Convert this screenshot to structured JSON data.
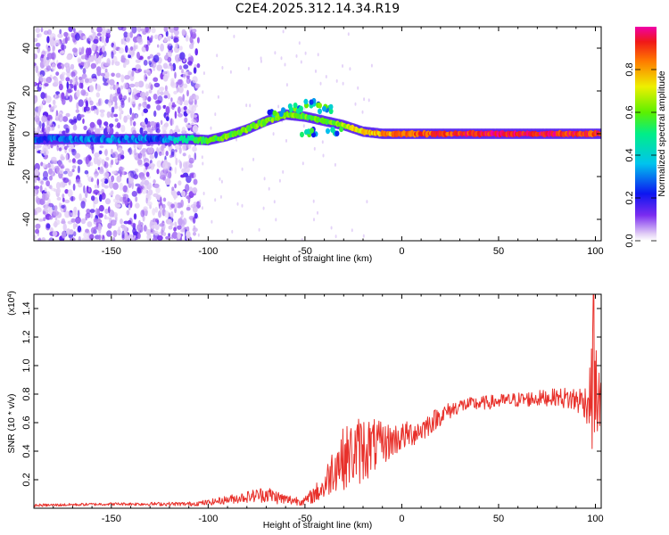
{
  "title": "C2E4.2025.312.14.34.R19",
  "colors": {
    "snr_line": "#e8302a",
    "axis": "#000000",
    "background": "#ffffff"
  },
  "chart_data": [
    {
      "type": "heatmap",
      "name": "spectrogram",
      "xlabel": "Height of straight line (km)",
      "ylabel": "Frequency (Hz)",
      "xlim": [
        -190,
        103
      ],
      "ylim": [
        -50,
        50
      ],
      "xticks": [
        -150,
        -100,
        -50,
        0,
        50,
        100
      ],
      "yticks": [
        -40,
        -20,
        0,
        20,
        40
      ],
      "colorbar": {
        "label": "Normalized spectral amplitude",
        "range": [
          0,
          1
        ],
        "ticks": [
          "0.0",
          "0.2",
          "0.4",
          "0.6",
          "0.8"
        ],
        "tick_values": [
          0.0,
          0.2,
          0.4,
          0.6,
          0.8
        ]
      },
      "noise_region_x": [
        -190,
        -105
      ],
      "ridge": [
        {
          "x": -190,
          "f": -2.5,
          "a": 0.25
        },
        {
          "x": -160,
          "f": -2.5,
          "a": 0.3
        },
        {
          "x": -125,
          "f": -2.5,
          "a": 0.28
        },
        {
          "x": -110,
          "f": -2.5,
          "a": 0.5
        },
        {
          "x": -100,
          "f": -3,
          "a": 0.55
        },
        {
          "x": -90,
          "f": -1,
          "a": 0.6
        },
        {
          "x": -80,
          "f": 2,
          "a": 0.6
        },
        {
          "x": -70,
          "f": 6,
          "a": 0.6
        },
        {
          "x": -60,
          "f": 9,
          "a": 0.62
        },
        {
          "x": -50,
          "f": 8,
          "a": 0.6
        },
        {
          "x": -40,
          "f": 6,
          "a": 0.6
        },
        {
          "x": -30,
          "f": 4,
          "a": 0.65
        },
        {
          "x": -20,
          "f": 1,
          "a": 0.75
        },
        {
          "x": -10,
          "f": 0,
          "a": 0.8
        },
        {
          "x": 0,
          "f": 0,
          "a": 0.85
        },
        {
          "x": 20,
          "f": 0,
          "a": 0.9
        },
        {
          "x": 60,
          "f": 0,
          "a": 0.95
        },
        {
          "x": 100,
          "f": 0,
          "a": 0.9
        }
      ],
      "branches": [
        {
          "x": -65,
          "f": 10
        },
        {
          "x": -55,
          "f": 12
        },
        {
          "x": -47,
          "f": 14
        },
        {
          "x": -40,
          "f": 12
        },
        {
          "x": -48,
          "f": 1
        },
        {
          "x": -35,
          "f": 1
        }
      ]
    },
    {
      "type": "line",
      "name": "snr",
      "xlabel": "Height of straight line (km)",
      "ylabel": "SNR (10 * v/v)",
      "scale_label": "(x10",
      "scale_exp": "4",
      "scale_close": ")",
      "xlim": [
        -190,
        103
      ],
      "ylim": [
        0,
        1.5
      ],
      "xticks": [
        -150,
        -100,
        -50,
        0,
        50,
        100
      ],
      "yticks": [
        "0.2",
        "0.4",
        "0.6",
        "0.8",
        "1.0",
        "1.2",
        "1.4"
      ],
      "ytick_values": [
        0.2,
        0.4,
        0.6,
        0.8,
        1.0,
        1.2,
        1.4
      ],
      "envelope": [
        {
          "x": -190,
          "y": 0.02,
          "n": 0.01
        },
        {
          "x": -150,
          "y": 0.03,
          "n": 0.01
        },
        {
          "x": -110,
          "y": 0.03,
          "n": 0.015
        },
        {
          "x": -100,
          "y": 0.04,
          "n": 0.02
        },
        {
          "x": -80,
          "y": 0.08,
          "n": 0.04
        },
        {
          "x": -70,
          "y": 0.1,
          "n": 0.06
        },
        {
          "x": -60,
          "y": 0.06,
          "n": 0.04
        },
        {
          "x": -50,
          "y": 0.05,
          "n": 0.03
        },
        {
          "x": -40,
          "y": 0.15,
          "n": 0.1
        },
        {
          "x": -35,
          "y": 0.3,
          "n": 0.18
        },
        {
          "x": -30,
          "y": 0.35,
          "n": 0.22
        },
        {
          "x": -20,
          "y": 0.42,
          "n": 0.25
        },
        {
          "x": -10,
          "y": 0.45,
          "n": 0.15
        },
        {
          "x": 0,
          "y": 0.5,
          "n": 0.1
        },
        {
          "x": 10,
          "y": 0.55,
          "n": 0.09
        },
        {
          "x": 20,
          "y": 0.65,
          "n": 0.07
        },
        {
          "x": 30,
          "y": 0.72,
          "n": 0.05
        },
        {
          "x": 50,
          "y": 0.75,
          "n": 0.05
        },
        {
          "x": 80,
          "y": 0.78,
          "n": 0.06
        },
        {
          "x": 95,
          "y": 0.75,
          "n": 0.12
        },
        {
          "x": 99,
          "y": 0.8,
          "n": 0.45
        },
        {
          "x": 103,
          "y": 0.75,
          "n": 0.15
        }
      ],
      "peak": {
        "x": 99.2,
        "y": 1.5
      }
    }
  ]
}
